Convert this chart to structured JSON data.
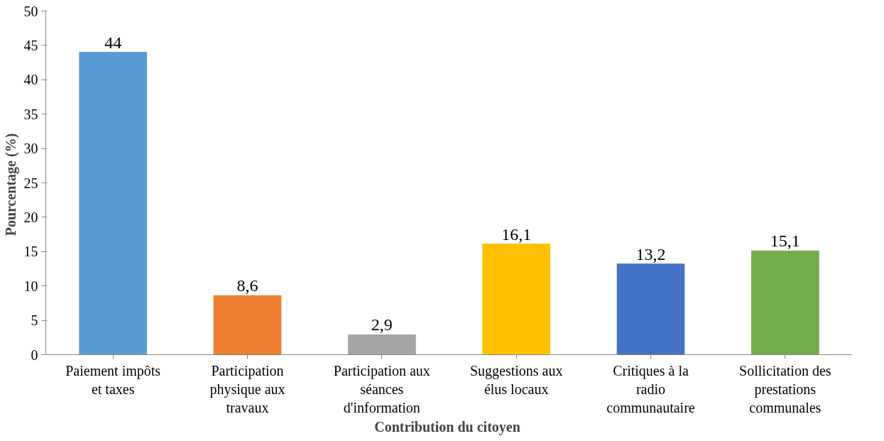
{
  "chart_data": {
    "type": "bar",
    "xlabel": "Contribution  du citoyen",
    "ylabel": "Pourcentage  (%)",
    "categories": [
      "Paiement impôts et taxes",
      "Participation physique aux travaux",
      "Participation aux séances d'information",
      "Suggestions aux élus locaux",
      "Critiques à la radio communautaire",
      "Sollicitation des prestations communales"
    ],
    "values": [
      44,
      8.6,
      2.9,
      16.1,
      13.2,
      15.1
    ],
    "value_labels": [
      "44",
      "8,6",
      "2,9",
      "16,1",
      "13,2",
      "15,1"
    ],
    "colors": [
      "#5b9bd5",
      "#ed7d31",
      "#a5a5a5",
      "#ffc000",
      "#4472c4",
      "#70ad47"
    ],
    "ylim": [
      0,
      50
    ],
    "yticks": [
      0,
      5,
      10,
      15,
      20,
      25,
      30,
      35,
      40,
      45,
      50
    ],
    "grid": false
  }
}
